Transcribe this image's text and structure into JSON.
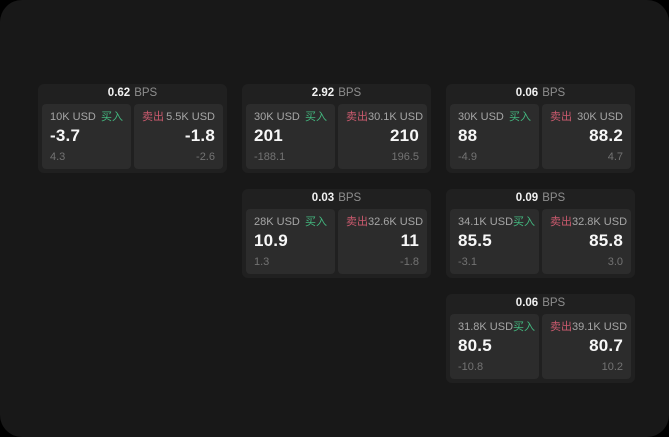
{
  "colors": {
    "page_bg": "#181818",
    "card_bg": "#202020",
    "panel_bg": "#2c2c2c",
    "text_primary": "#f2f2f2",
    "text_muted": "#8e8e8e",
    "buy_green": "#43b77f",
    "sell_red": "#cb5a6e"
  },
  "labels": {
    "bps_unit": "BPS",
    "buy": "买入",
    "sell": "卖出"
  },
  "cards": [
    {
      "row": 1,
      "col": 1,
      "bps": "0.62",
      "buy": {
        "size": "10K USD",
        "value": "-3.7",
        "delta": "4.3"
      },
      "sell": {
        "size": "5.5K USD",
        "value": "-1.8",
        "delta": "-2.6"
      }
    },
    {
      "row": 1,
      "col": 2,
      "bps": "2.92",
      "buy": {
        "size": "30K USD",
        "value": "201",
        "delta": "-188.1"
      },
      "sell": {
        "size": "30.1K USD",
        "value": "210",
        "delta": "196.5"
      }
    },
    {
      "row": 1,
      "col": 3,
      "bps": "0.06",
      "buy": {
        "size": "30K USD",
        "value": "88",
        "delta": "-4.9"
      },
      "sell": {
        "size": "30K USD",
        "value": "88.2",
        "delta": "4.7"
      }
    },
    {
      "row": 2,
      "col": 2,
      "bps": "0.03",
      "buy": {
        "size": "28K USD",
        "value": "10.9",
        "delta": "1.3"
      },
      "sell": {
        "size": "32.6K USD",
        "value": "11",
        "delta": "-1.8"
      }
    },
    {
      "row": 2,
      "col": 3,
      "bps": "0.09",
      "buy": {
        "size": "34.1K USD",
        "value": "85.5",
        "delta": "-3.1"
      },
      "sell": {
        "size": "32.8K USD",
        "value": "85.8",
        "delta": "3.0"
      }
    },
    {
      "row": 3,
      "col": 3,
      "bps": "0.06",
      "buy": {
        "size": "31.8K USD",
        "value": "80.5",
        "delta": "-10.8"
      },
      "sell": {
        "size": "39.1K USD",
        "value": "80.7",
        "delta": "10.2"
      }
    }
  ]
}
